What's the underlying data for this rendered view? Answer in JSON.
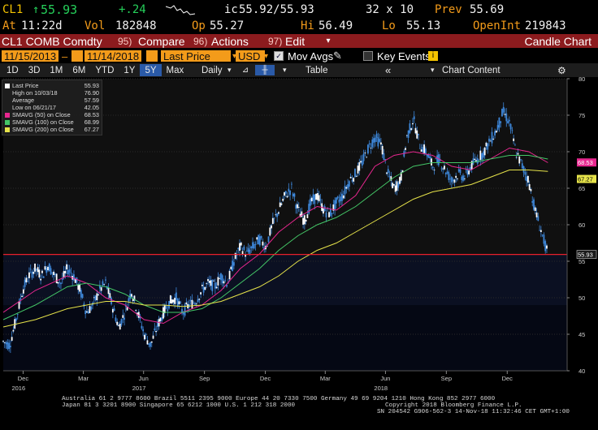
{
  "header": {
    "ticker": "CL1",
    "last": "55.93",
    "change": "+.24",
    "bidask_prefix": "ic",
    "bidask": "55.92/55.93",
    "size": "32 x 10",
    "prev_label": "Prev",
    "prev": "55.69",
    "time_label": "At",
    "time": "11:22d",
    "vol_label": "Vol",
    "vol": "182848",
    "open_label": "Op",
    "open": "55.27",
    "high_label": "Hi",
    "high": "56.49",
    "low_label": "Lo",
    "low": "55.13",
    "oi_label": "OpenInt",
    "oi": "219843"
  },
  "menu": {
    "security": "CL1 COMB Comdty",
    "compare_num": "95)",
    "compare": "Compare",
    "actions_num": "96)",
    "actions": "Actions",
    "edit_num": "97)",
    "edit": "Edit",
    "view": "Candle Chart"
  },
  "controls": {
    "start_date": "11/15/2013",
    "end_date": "11/14/2018",
    "field": "Last Price",
    "currency": "USD",
    "mov_avgs": "Mov Avgs",
    "key_events": "Key Events"
  },
  "periods": [
    "1D",
    "3D",
    "1M",
    "6M",
    "YTD",
    "1Y",
    "5Y",
    "Max"
  ],
  "selected_period": "5Y",
  "toolbar": {
    "frequency": "Daily",
    "table": "Table",
    "chart_content": "Chart Content"
  },
  "legend": [
    {
      "label": "Last Price",
      "value": "55.93",
      "color": "#ffffff"
    },
    {
      "label": "High on 10/03/18",
      "value": "76.90",
      "color": ""
    },
    {
      "label": "Average",
      "value": "57.59",
      "color": ""
    },
    {
      "label": "Low on 06/21/17",
      "value": "42.05",
      "color": ""
    },
    {
      "label": "SMAVG (50)  on Close",
      "value": "68.53",
      "color": "#e8278f"
    },
    {
      "label": "SMAVG (100)  on Close",
      "value": "68.99",
      "color": "#44c767"
    },
    {
      "label": "SMAVG (200)  on Close",
      "value": "67.27",
      "color": "#e6e34a"
    }
  ],
  "colors": {
    "price": "#3d86d8",
    "candle_up": "#ffffff",
    "ma50": "#e8278f",
    "ma100": "#44c767",
    "ma200": "#e6e34a",
    "last_line": "#e8202a"
  },
  "footer": {
    "line1": "Australia 61 2 9777 8600 Brazil 5511 2395 9000 Europe 44 20 7330 7500 Germany 49 69 9204 1210 Hong Kong 852 2977 6000",
    "line2a": "Japan 81 3 3201 8900          Singapore 65 6212 1000          U.S. 1 212 318 2000",
    "line2b": "Copyright 2018 Bloomberg Finance L.P.",
    "line3": "SN 204542 G906-562-3 14-Nov-18 11:32:46 CET  GMT+1:00"
  },
  "chart_data": {
    "type": "line",
    "title": "",
    "ylim": [
      40,
      80
    ],
    "yticks": [
      40,
      45,
      50,
      55,
      60,
      65,
      70,
      75,
      80
    ],
    "x_labels": [
      {
        "label": "Dec",
        "year": "2016",
        "t": 0.062
      },
      {
        "label": "Mar",
        "year": "",
        "t": 0.25
      },
      {
        "label": "Jun",
        "year": "2017",
        "t": 0.438
      },
      {
        "label": "Sep",
        "year": "",
        "t": 0.628
      },
      {
        "label": "Dec",
        "year": "",
        "t": 0.818
      },
      {
        "label": "Mar",
        "year": "",
        "t": 1.005
      },
      {
        "label": "Jun",
        "year": "2018",
        "t": 1.193
      },
      {
        "label": "Sep",
        "year": "",
        "t": 1.383
      },
      {
        "label": "Dec",
        "year": "",
        "t": 1.573
      }
    ],
    "series": [
      {
        "key": "price",
        "points": [
          [
            0,
            44
          ],
          [
            0.02,
            43.5
          ],
          [
            0.04,
            47
          ],
          [
            0.06,
            51
          ],
          [
            0.08,
            53
          ],
          [
            0.1,
            54
          ],
          [
            0.12,
            53
          ],
          [
            0.14,
            54.5
          ],
          [
            0.16,
            53
          ],
          [
            0.18,
            52
          ],
          [
            0.2,
            54
          ],
          [
            0.22,
            53
          ],
          [
            0.24,
            51
          ],
          [
            0.26,
            48
          ],
          [
            0.28,
            49
          ],
          [
            0.3,
            51
          ],
          [
            0.32,
            52
          ],
          [
            0.34,
            49
          ],
          [
            0.36,
            46
          ],
          [
            0.38,
            48
          ],
          [
            0.4,
            51
          ],
          [
            0.42,
            48
          ],
          [
            0.44,
            45
          ],
          [
            0.46,
            43.5
          ],
          [
            0.48,
            46
          ],
          [
            0.5,
            48
          ],
          [
            0.52,
            49.5
          ],
          [
            0.54,
            50
          ],
          [
            0.56,
            48
          ],
          [
            0.58,
            49
          ],
          [
            0.6,
            49.5
          ],
          [
            0.62,
            51
          ],
          [
            0.64,
            52
          ],
          [
            0.66,
            51.5
          ],
          [
            0.68,
            53
          ],
          [
            0.7,
            52
          ],
          [
            0.72,
            55
          ],
          [
            0.74,
            57
          ],
          [
            0.76,
            56
          ],
          [
            0.78,
            57
          ],
          [
            0.8,
            58
          ],
          [
            0.82,
            57
          ],
          [
            0.84,
            60
          ],
          [
            0.86,
            62
          ],
          [
            0.88,
            64
          ],
          [
            0.9,
            65
          ],
          [
            0.92,
            62
          ],
          [
            0.94,
            60.5
          ],
          [
            0.96,
            63
          ],
          [
            0.98,
            64
          ],
          [
            1.0,
            62
          ],
          [
            1.02,
            61.5
          ],
          [
            1.04,
            63
          ],
          [
            1.06,
            64
          ],
          [
            1.08,
            66
          ],
          [
            1.1,
            67
          ],
          [
            1.12,
            68.5
          ],
          [
            1.14,
            70.5
          ],
          [
            1.16,
            72
          ],
          [
            1.18,
            71
          ],
          [
            1.2,
            67
          ],
          [
            1.22,
            65
          ],
          [
            1.24,
            66
          ],
          [
            1.26,
            72
          ],
          [
            1.28,
            74.5
          ],
          [
            1.3,
            71
          ],
          [
            1.32,
            70
          ],
          [
            1.34,
            68
          ],
          [
            1.36,
            69
          ],
          [
            1.38,
            67.5
          ],
          [
            1.4,
            66
          ],
          [
            1.42,
            67
          ],
          [
            1.44,
            66.5
          ],
          [
            1.46,
            68
          ],
          [
            1.48,
            69
          ],
          [
            1.5,
            70
          ],
          [
            1.52,
            71.5
          ],
          [
            1.54,
            73
          ],
          [
            1.56,
            75.5
          ],
          [
            1.58,
            74
          ],
          [
            1.6,
            70
          ],
          [
            1.62,
            68
          ],
          [
            1.64,
            66
          ],
          [
            1.66,
            62
          ],
          [
            1.68,
            59
          ],
          [
            1.7,
            55.9
          ]
        ]
      },
      {
        "key": "ma50",
        "points": [
          [
            0,
            48
          ],
          [
            0.1,
            51
          ],
          [
            0.2,
            53
          ],
          [
            0.26,
            52
          ],
          [
            0.32,
            50
          ],
          [
            0.38,
            49
          ],
          [
            0.44,
            47
          ],
          [
            0.5,
            46.5
          ],
          [
            0.56,
            48
          ],
          [
            0.62,
            49
          ],
          [
            0.68,
            51
          ],
          [
            0.74,
            54
          ],
          [
            0.8,
            56
          ],
          [
            0.86,
            59
          ],
          [
            0.92,
            61
          ],
          [
            0.98,
            62.5
          ],
          [
            1.04,
            62
          ],
          [
            1.1,
            64
          ],
          [
            1.16,
            68
          ],
          [
            1.22,
            69.5
          ],
          [
            1.28,
            70
          ],
          [
            1.34,
            69.5
          ],
          [
            1.4,
            68
          ],
          [
            1.46,
            67.5
          ],
          [
            1.52,
            69
          ],
          [
            1.58,
            70.5
          ],
          [
            1.64,
            70
          ],
          [
            1.7,
            68.5
          ]
        ]
      },
      {
        "key": "ma100",
        "points": [
          [
            0,
            47
          ],
          [
            0.1,
            49
          ],
          [
            0.2,
            51.5
          ],
          [
            0.26,
            52
          ],
          [
            0.32,
            51.5
          ],
          [
            0.38,
            50.5
          ],
          [
            0.44,
            49
          ],
          [
            0.5,
            48
          ],
          [
            0.56,
            48
          ],
          [
            0.62,
            48.5
          ],
          [
            0.68,
            50
          ],
          [
            0.74,
            52
          ],
          [
            0.8,
            54
          ],
          [
            0.86,
            56.5
          ],
          [
            0.92,
            58.5
          ],
          [
            0.98,
            60
          ],
          [
            1.04,
            61
          ],
          [
            1.1,
            62.5
          ],
          [
            1.16,
            64.5
          ],
          [
            1.22,
            66.5
          ],
          [
            1.28,
            68
          ],
          [
            1.34,
            68.5
          ],
          [
            1.4,
            68.5
          ],
          [
            1.46,
            68.5
          ],
          [
            1.52,
            69
          ],
          [
            1.58,
            69.5
          ],
          [
            1.64,
            69.5
          ],
          [
            1.7,
            69
          ]
        ]
      },
      {
        "key": "ma200",
        "points": [
          [
            0,
            46
          ],
          [
            0.1,
            47
          ],
          [
            0.2,
            48.5
          ],
          [
            0.26,
            49
          ],
          [
            0.32,
            49.5
          ],
          [
            0.38,
            49.5
          ],
          [
            0.44,
            49
          ],
          [
            0.5,
            49
          ],
          [
            0.56,
            48.8
          ],
          [
            0.62,
            49
          ],
          [
            0.68,
            49.5
          ],
          [
            0.74,
            50.5
          ],
          [
            0.8,
            51.5
          ],
          [
            0.86,
            53
          ],
          [
            0.92,
            55
          ],
          [
            0.98,
            56.5
          ],
          [
            1.04,
            57.5
          ],
          [
            1.1,
            59
          ],
          [
            1.16,
            60.5
          ],
          [
            1.22,
            62
          ],
          [
            1.28,
            63.5
          ],
          [
            1.34,
            64.5
          ],
          [
            1.4,
            65
          ],
          [
            1.46,
            65.5
          ],
          [
            1.52,
            66.5
          ],
          [
            1.58,
            67.5
          ],
          [
            1.64,
            67.5
          ],
          [
            1.7,
            67.3
          ]
        ]
      }
    ]
  }
}
